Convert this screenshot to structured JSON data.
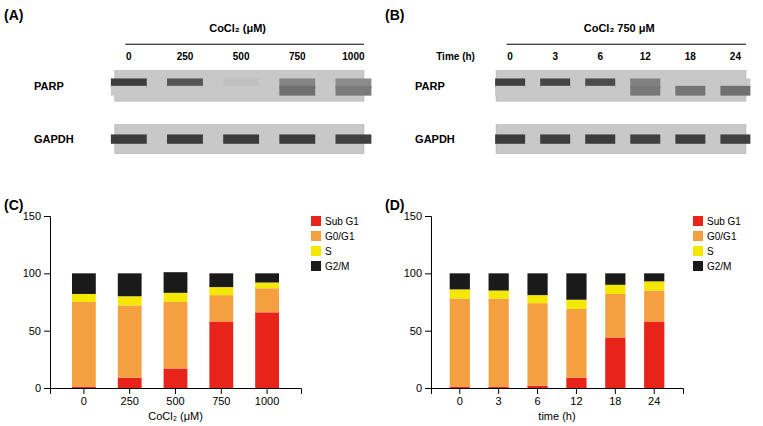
{
  "chart_data": [
    {
      "type": "western_blot",
      "annotations": [
        "(A)"
      ],
      "title": "CoCl₂ (μM)",
      "categories": [
        "0",
        "250",
        "500",
        "750",
        "1000"
      ],
      "series": [
        {
          "name": "PARP",
          "values": [
            0.88,
            0.72,
            0.05,
            0.42,
            0.38
          ],
          "cleaved_values": [
            0.0,
            0.0,
            0.0,
            0.55,
            0.48
          ]
        },
        {
          "name": "GAPDH",
          "values": [
            0.88,
            0.88,
            0.88,
            0.88,
            0.85
          ]
        }
      ],
      "zlim": [
        0,
        1
      ]
    },
    {
      "type": "western_blot",
      "annotations": [
        "(B)"
      ],
      "title": "CoCl₂ 750 μM",
      "xlabel": "Time (h)",
      "categories": [
        "0",
        "3",
        "6",
        "12",
        "18",
        "24"
      ],
      "series": [
        {
          "name": "PARP",
          "values": [
            0.85,
            0.82,
            0.78,
            0.45,
            0.0,
            0.0
          ],
          "cleaved_values": [
            0.0,
            0.0,
            0.0,
            0.5,
            0.52,
            0.55
          ]
        },
        {
          "name": "GAPDH",
          "values": [
            0.88,
            0.86,
            0.88,
            0.85,
            0.86,
            0.85
          ]
        }
      ],
      "zlim": [
        0,
        1
      ]
    },
    {
      "type": "bar",
      "stacked": true,
      "annotations": [
        "(C)"
      ],
      "xlabel": "CoCl₂ (μM)",
      "categories": [
        "0",
        "250",
        "500",
        "750",
        "1000"
      ],
      "series": [
        {
          "name": "Sub G1",
          "color": "#E8231A",
          "values": [
            1,
            9,
            17,
            58,
            66
          ]
        },
        {
          "name": "G0/G1",
          "color": "#F5A040",
          "values": [
            74,
            63,
            58,
            23,
            21
          ]
        },
        {
          "name": "S",
          "color": "#F5E800",
          "values": [
            7,
            8,
            8,
            7,
            5
          ]
        },
        {
          "name": "G2/M",
          "color": "#1A1A1A",
          "values": [
            18,
            20,
            18,
            12,
            8
          ]
        }
      ],
      "ylim": [
        0,
        150
      ],
      "yticks": [
        0,
        50,
        100,
        150
      ],
      "grid": false,
      "legend": "upper right"
    },
    {
      "type": "bar",
      "stacked": true,
      "annotations": [
        "(D)"
      ],
      "xlabel": "time (h)",
      "categories": [
        "0",
        "3",
        "6",
        "12",
        "18",
        "24"
      ],
      "series": [
        {
          "name": "Sub G1",
          "color": "#E8231A",
          "values": [
            1,
            1,
            2,
            9,
            44,
            58
          ]
        },
        {
          "name": "G0/G1",
          "color": "#F5A040",
          "values": [
            77,
            77,
            72,
            60,
            38,
            27
          ]
        },
        {
          "name": "S",
          "color": "#F5E800",
          "values": [
            8,
            7,
            7,
            8,
            8,
            8
          ]
        },
        {
          "name": "G2/M",
          "color": "#1A1A1A",
          "values": [
            14,
            15,
            19,
            23,
            10,
            7
          ]
        }
      ],
      "ylim": [
        0,
        150
      ],
      "yticks": [
        0,
        50,
        100,
        150
      ],
      "grid": false,
      "legend": "upper right"
    }
  ]
}
